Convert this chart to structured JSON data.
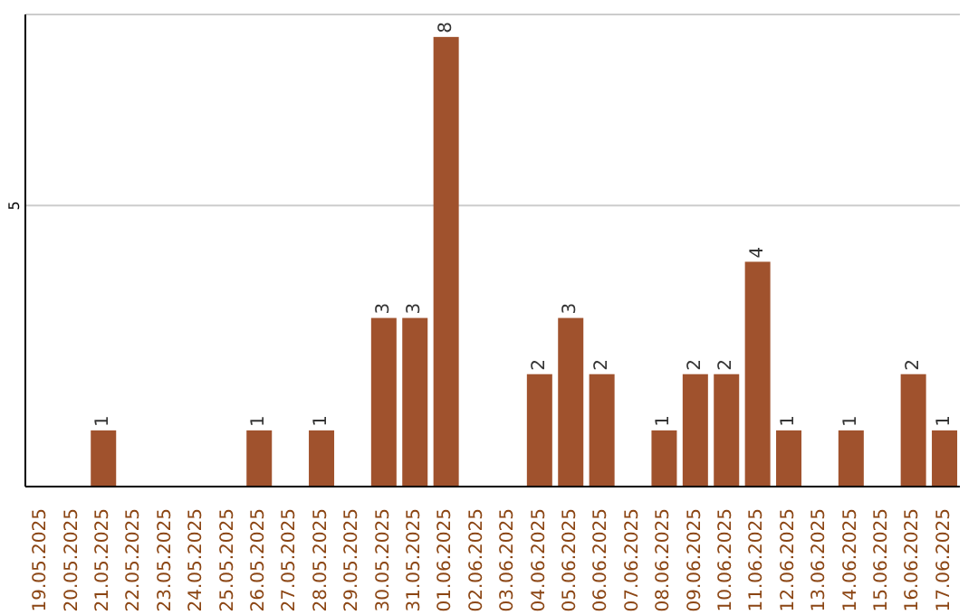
{
  "chart_data": {
    "type": "bar",
    "categories": [
      "19.05.2025",
      "20.05.2025",
      "21.05.2025",
      "22.05.2025",
      "23.05.2025",
      "24.05.2025",
      "25.05.2025",
      "26.05.2025",
      "27.05.2025",
      "28.05.2025",
      "29.05.2025",
      "30.05.2025",
      "31.05.2025",
      "01.06.2025",
      "02.06.2025",
      "03.06.2025",
      "04.06.2025",
      "05.06.2025",
      "06.06.2025",
      "07.06.2025",
      "08.06.2025",
      "09.06.2025",
      "10.06.2025",
      "11.06.2025",
      "12.06.2025",
      "13.06.2025",
      "14.06.2025",
      "15.06.2025",
      "16.06.2025",
      "17.06.2025"
    ],
    "values": [
      0,
      0,
      1,
      0,
      0,
      0,
      0,
      1,
      0,
      1,
      0,
      3,
      3,
      8,
      0,
      0,
      2,
      3,
      2,
      0,
      1,
      2,
      2,
      4,
      1,
      0,
      1,
      0,
      2,
      1
    ],
    "value_labels": [
      null,
      null,
      "1",
      null,
      null,
      null,
      null,
      "1",
      null,
      "1",
      null,
      "3",
      "3",
      "8",
      null,
      null,
      "2",
      "3",
      "2",
      null,
      "1",
      "2",
      "2",
      "4",
      "1",
      null,
      "1",
      null,
      "2",
      "1"
    ],
    "color": "#a0522d",
    "ylim": [
      0,
      8.4
    ],
    "yticks": [
      5
    ],
    "grid": "y"
  }
}
